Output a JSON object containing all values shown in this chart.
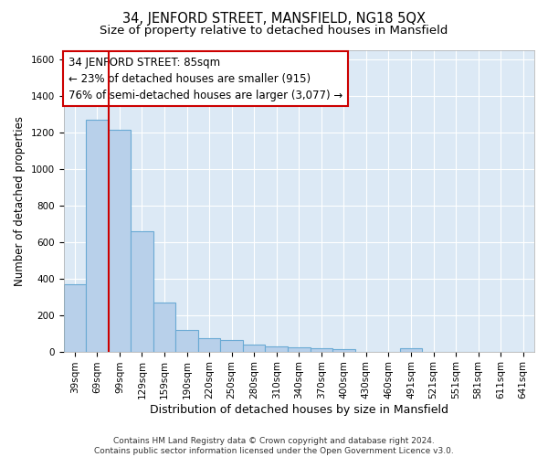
{
  "title1": "34, JENFORD STREET, MANSFIELD, NG18 5QX",
  "title2": "Size of property relative to detached houses in Mansfield",
  "xlabel": "Distribution of detached houses by size in Mansfield",
  "ylabel": "Number of detached properties",
  "categories": [
    "39sqm",
    "69sqm",
    "99sqm",
    "129sqm",
    "159sqm",
    "190sqm",
    "220sqm",
    "250sqm",
    "280sqm",
    "310sqm",
    "340sqm",
    "370sqm",
    "400sqm",
    "430sqm",
    "460sqm",
    "491sqm",
    "521sqm",
    "551sqm",
    "581sqm",
    "611sqm",
    "641sqm"
  ],
  "values": [
    370,
    1270,
    1215,
    660,
    270,
    120,
    75,
    65,
    40,
    30,
    25,
    20,
    15,
    0,
    0,
    20,
    0,
    0,
    0,
    0,
    0
  ],
  "bar_color": "#b8d0ea",
  "bar_edge_color": "#6aaad4",
  "bar_linewidth": 0.8,
  "vline_color": "#cc0000",
  "annotation_text": "34 JENFORD STREET: 85sqm\n← 23% of detached houses are smaller (915)\n76% of semi-detached houses are larger (3,077) →",
  "annotation_box_color": "#ffffff",
  "annotation_box_edge": "#cc0000",
  "ylim": [
    0,
    1650
  ],
  "yticks": [
    0,
    200,
    400,
    600,
    800,
    1000,
    1200,
    1400,
    1600
  ],
  "background_color": "#dce9f5",
  "grid_color": "#ffffff",
  "footer": "Contains HM Land Registry data © Crown copyright and database right 2024.\nContains public sector information licensed under the Open Government Licence v3.0.",
  "title1_fontsize": 10.5,
  "title2_fontsize": 9.5,
  "xlabel_fontsize": 9,
  "ylabel_fontsize": 8.5,
  "tick_fontsize": 7.5,
  "annotation_fontsize": 8.5,
  "footer_fontsize": 6.5
}
